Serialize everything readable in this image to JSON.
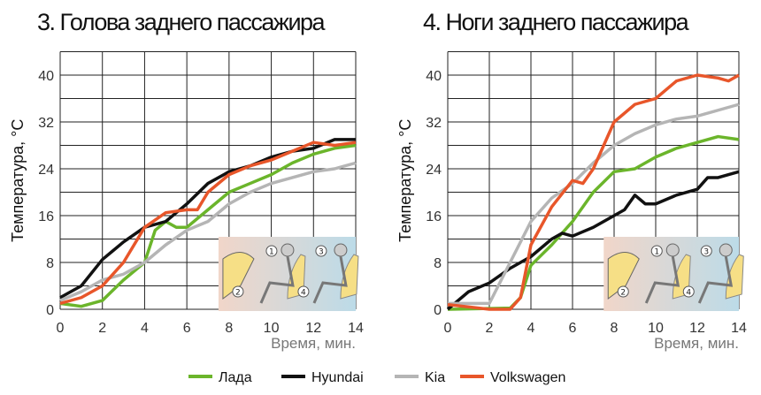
{
  "colors": {
    "Лада": "#6bb52b",
    "Hyundai": "#111111",
    "Kia": "#b5b5b5",
    "Volkswagen": "#e8562a"
  },
  "legend": [
    "Лада",
    "Hyundai",
    "Kia",
    "Volkswagen"
  ],
  "inset_labels": [
    "1",
    "2",
    "3",
    "4"
  ],
  "chart_data": [
    {
      "type": "line",
      "title": "3. Голова заднего пассажира",
      "xlabel": "Время, мин.",
      "ylabel": "Температура, °С",
      "xlim": [
        0,
        14
      ],
      "ylim": [
        0,
        44
      ],
      "xticks": [
        0,
        2,
        4,
        6,
        8,
        10,
        12,
        14
      ],
      "yticks": [
        0,
        8,
        16,
        24,
        32,
        40
      ],
      "grid": true,
      "series": [
        {
          "name": "Лада",
          "x": [
            0,
            1,
            2,
            3,
            4,
            4.5,
            5,
            5.5,
            6,
            7,
            8,
            9,
            10,
            11,
            12,
            13,
            14
          ],
          "y": [
            1,
            0.5,
            1.5,
            5,
            8,
            13.5,
            15,
            14,
            14,
            17,
            20,
            21.5,
            23,
            25,
            26.5,
            27.5,
            28
          ]
        },
        {
          "name": "Hyundai",
          "x": [
            0,
            1,
            2,
            3,
            4,
            5,
            5.5,
            6,
            7,
            8,
            9,
            10,
            11,
            12,
            13,
            14
          ],
          "y": [
            2,
            4,
            8.5,
            11.5,
            14,
            15,
            16.5,
            18,
            21.5,
            23.5,
            24.5,
            26,
            27,
            27.5,
            29,
            29
          ]
        },
        {
          "name": "Kia",
          "x": [
            0,
            1,
            2,
            3,
            4,
            5,
            6,
            7,
            8,
            9,
            10,
            11,
            12,
            13,
            14
          ],
          "y": [
            1.5,
            3,
            5,
            6,
            8,
            11,
            13.5,
            15,
            18,
            20,
            21.5,
            22.5,
            23.5,
            24,
            25
          ]
        },
        {
          "name": "Volkswagen",
          "x": [
            0,
            1,
            2,
            3,
            4,
            5,
            6,
            6.5,
            7,
            8,
            9,
            10,
            11,
            12,
            13,
            14
          ],
          "y": [
            1,
            2,
            4,
            8,
            14,
            16.5,
            17,
            17,
            20,
            23,
            24.5,
            25.5,
            27,
            28.5,
            28,
            28.5
          ]
        }
      ]
    },
    {
      "type": "line",
      "title": "4. Ноги заднего пассажира",
      "xlabel": "Время, мин.",
      "ylabel": "Температура, °С",
      "xlim": [
        0,
        14
      ],
      "ylim": [
        0,
        44
      ],
      "xticks": [
        0,
        2,
        4,
        6,
        8,
        10,
        12,
        14
      ],
      "yticks": [
        0,
        8,
        16,
        24,
        32,
        40
      ],
      "grid": true,
      "series": [
        {
          "name": "Лада",
          "x": [
            0,
            3,
            3.5,
            4,
            5,
            6,
            7,
            8,
            9,
            10,
            11,
            12,
            13,
            14
          ],
          "y": [
            0,
            0.2,
            2,
            7.5,
            11,
            15,
            20,
            23.5,
            24,
            26,
            27.5,
            28.5,
            29.5,
            29
          ]
        },
        {
          "name": "Hyundai",
          "x": [
            0,
            1,
            2,
            3,
            4,
            5,
            5.5,
            6,
            7,
            8,
            8.5,
            9,
            9.5,
            10,
            11,
            12,
            12.5,
            13,
            14
          ],
          "y": [
            0,
            3,
            4.5,
            7,
            9,
            12,
            13,
            12.5,
            14,
            16,
            17,
            19.5,
            18,
            18,
            19.5,
            20.5,
            22.5,
            22.5,
            23.5
          ]
        },
        {
          "name": "Kia",
          "x": [
            0,
            2,
            3,
            4,
            5,
            6,
            7,
            8,
            9,
            10,
            11,
            12,
            13,
            14
          ],
          "y": [
            1,
            1,
            8,
            15,
            19,
            21.5,
            25,
            28,
            30,
            31.5,
            32.5,
            33,
            34,
            35
          ]
        },
        {
          "name": "Volkswagen",
          "x": [
            0,
            2,
            3,
            3.5,
            4,
            5,
            6,
            6.5,
            7,
            8,
            9,
            10,
            11,
            12,
            13,
            13.5,
            14
          ],
          "y": [
            0.8,
            0,
            0,
            2,
            11,
            17.5,
            22,
            21.5,
            24,
            32,
            35,
            36,
            39,
            40,
            39.5,
            39,
            40
          ]
        }
      ]
    }
  ]
}
